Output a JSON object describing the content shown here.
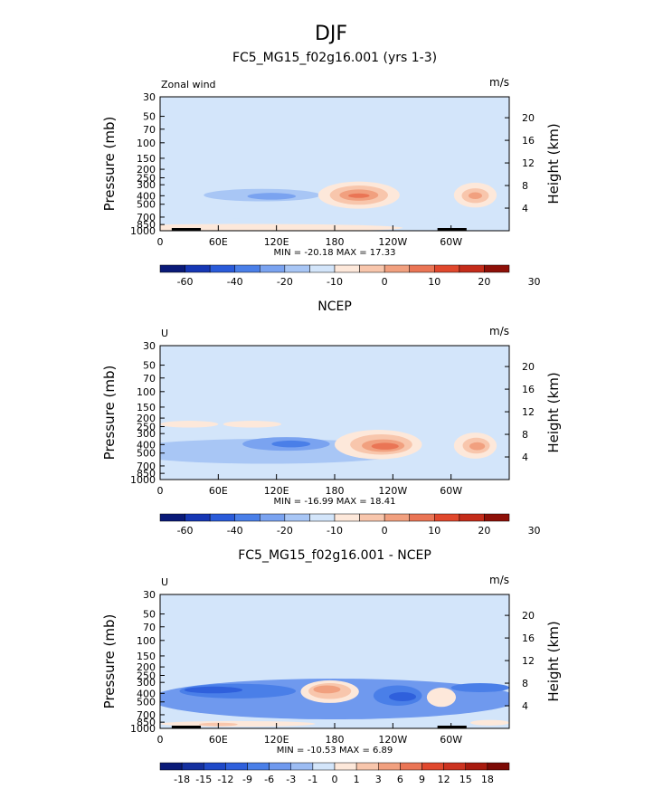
{
  "figure_title": "DJF",
  "chart_data": [
    {
      "type": "heatmap",
      "title": "FC5_MG15_f02g16.001 (yrs 1-3)",
      "left_label": "Zonal wind",
      "units": "m/s",
      "ylabel": "Pressure (mb)",
      "y2label": "Height (km)",
      "xticks": [
        "0",
        "60E",
        "120E",
        "180",
        "120W",
        "60W"
      ],
      "yticks": [
        "30",
        "50",
        "70",
        "100",
        "150",
        "200",
        "250",
        "300",
        "400",
        "500",
        "700",
        "850",
        "1000"
      ],
      "y2ticks": [
        "20",
        "16",
        "12",
        "8",
        "4"
      ],
      "stats": "MIN = -20.18   MAX =  17.33",
      "colorbar": {
        "labels": [
          "-60",
          "-40",
          "-20",
          "-10",
          "0",
          "10",
          "20",
          "30"
        ],
        "colors": [
          "#0a1a78",
          "#1637b4",
          "#2a5bd9",
          "#4a7fe8",
          "#7aa3f0",
          "#a8c6f5",
          "#d3e5fa",
          "#fde8da",
          "#f8c6ac",
          "#f1a07f",
          "#ea7555",
          "#e0482d",
          "#c42c1a",
          "#8e1008"
        ]
      },
      "fields": [
        {
          "level": 0,
          "x": 180,
          "y": 3.8,
          "rx": 190,
          "ry": 2.0
        },
        {
          "level": -1,
          "x": 105,
          "y": 6.3,
          "rx": 60,
          "ry": 1.1
        },
        {
          "level": -2,
          "x": 115,
          "y": 6.1,
          "rx": 25,
          "ry": 0.6
        },
        {
          "level": 1,
          "x": 205,
          "y": 6.3,
          "rx": 42,
          "ry": 2.4
        },
        {
          "level": 2,
          "x": 205,
          "y": 6.3,
          "rx": 30,
          "ry": 1.7
        },
        {
          "level": 3,
          "x": 205,
          "y": 6.3,
          "rx": 20,
          "ry": 1.0
        },
        {
          "level": 4,
          "x": 205,
          "y": 6.2,
          "rx": 11,
          "ry": 0.4
        },
        {
          "level": 1,
          "x": 325,
          "y": 6.3,
          "rx": 22,
          "ry": 2.2
        },
        {
          "level": 2,
          "x": 325,
          "y": 6.2,
          "rx": 14,
          "ry": 1.3
        },
        {
          "level": 3,
          "x": 325,
          "y": 6.2,
          "rx": 7,
          "ry": 0.6
        },
        {
          "level": 1,
          "x": 90,
          "y": 0.5,
          "rx": 160,
          "ry": 0.7
        }
      ]
    },
    {
      "type": "heatmap",
      "title": "NCEP",
      "left_label": "U",
      "units": "m/s",
      "ylabel": "Pressure (mb)",
      "y2label": "Height (km)",
      "xticks": [
        "0",
        "60E",
        "120E",
        "180",
        "120W",
        "60W"
      ],
      "yticks": [
        "30",
        "50",
        "70",
        "100",
        "150",
        "200",
        "250",
        "300",
        "400",
        "500",
        "700",
        "850",
        "1000"
      ],
      "y2ticks": [
        "20",
        "16",
        "12",
        "8",
        "4"
      ],
      "stats": "MIN = -16.99   MAX =  18.41",
      "colorbar": {
        "labels": [
          "-60",
          "-40",
          "-20",
          "-10",
          "0",
          "10",
          "20",
          "30"
        ],
        "colors": [
          "#0a1a78",
          "#1637b4",
          "#2a5bd9",
          "#4a7fe8",
          "#7aa3f0",
          "#a8c6f5",
          "#d3e5fa",
          "#fde8da",
          "#f8c6ac",
          "#f1a07f",
          "#ea7555",
          "#e0482d",
          "#c42c1a",
          "#8e1008"
        ]
      },
      "fields": [
        {
          "level": -1,
          "x": 110,
          "y": 5.0,
          "rx": 150,
          "ry": 2.2
        },
        {
          "level": -2,
          "x": 130,
          "y": 6.3,
          "rx": 45,
          "ry": 1.2
        },
        {
          "level": -3,
          "x": 135,
          "y": 6.3,
          "rx": 20,
          "ry": 0.6
        },
        {
          "level": 1,
          "x": 225,
          "y": 6.2,
          "rx": 45,
          "ry": 2.6
        },
        {
          "level": 2,
          "x": 228,
          "y": 6.2,
          "rx": 32,
          "ry": 1.8
        },
        {
          "level": 3,
          "x": 230,
          "y": 6.0,
          "rx": 22,
          "ry": 1.1
        },
        {
          "level": 4,
          "x": 232,
          "y": 5.9,
          "rx": 14,
          "ry": 0.6
        },
        {
          "level": 1,
          "x": 325,
          "y": 6.0,
          "rx": 22,
          "ry": 2.3
        },
        {
          "level": 2,
          "x": 326,
          "y": 6.0,
          "rx": 14,
          "ry": 1.4
        },
        {
          "level": 3,
          "x": 327,
          "y": 5.9,
          "rx": 8,
          "ry": 0.7
        },
        {
          "level": 1,
          "x": 30,
          "y": 9.8,
          "rx": 30,
          "ry": 0.6
        },
        {
          "level": 1,
          "x": 95,
          "y": 9.8,
          "rx": 30,
          "ry": 0.6
        }
      ]
    },
    {
      "type": "heatmap",
      "title": "FC5_MG15_f02g16.001 - NCEP",
      "left_label": "U",
      "units": "m/s",
      "ylabel": "Pressure (mb)",
      "y2label": "Height (km)",
      "xticks": [
        "0",
        "60E",
        "120E",
        "180",
        "120W",
        "60W"
      ],
      "yticks": [
        "30",
        "50",
        "70",
        "100",
        "150",
        "200",
        "250",
        "300",
        "400",
        "500",
        "700",
        "850",
        "1000"
      ],
      "y2ticks": [
        "20",
        "16",
        "12",
        "8",
        "4"
      ],
      "stats": "MIN = -10.53   MAX =   6.89",
      "colorbar": {
        "labels": [
          "-18",
          "-15",
          "-12",
          "-9",
          "-6",
          "-3",
          "-1",
          "0",
          "1",
          "3",
          "6",
          "9",
          "12",
          "15",
          "18"
        ],
        "colors": [
          "#0a1a78",
          "#14309f",
          "#1f49c8",
          "#2f60dc",
          "#4a7fe8",
          "#6f99ee",
          "#9cbcf3",
          "#d3e5fa",
          "#fde8da",
          "#f8c6ac",
          "#f1a07f",
          "#ea7555",
          "#e0482d",
          "#cc3320",
          "#a81a0e",
          "#7c0a05"
        ]
      },
      "fields": [
        {
          "level": -2,
          "x": 180,
          "y": 5.2,
          "rx": 190,
          "ry": 3.6
        },
        {
          "level": -3,
          "x": 80,
          "y": 6.6,
          "rx": 60,
          "ry": 1.3
        },
        {
          "level": -4,
          "x": 55,
          "y": 6.8,
          "rx": 30,
          "ry": 0.6
        },
        {
          "level": -3,
          "x": 245,
          "y": 5.8,
          "rx": 25,
          "ry": 1.8
        },
        {
          "level": -4,
          "x": 250,
          "y": 5.6,
          "rx": 14,
          "ry": 0.8
        },
        {
          "level": -3,
          "x": 330,
          "y": 7.2,
          "rx": 30,
          "ry": 0.8
        },
        {
          "level": 1,
          "x": 175,
          "y": 6.5,
          "rx": 30,
          "ry": 2.0
        },
        {
          "level": 2,
          "x": 175,
          "y": 6.6,
          "rx": 22,
          "ry": 1.4
        },
        {
          "level": 3,
          "x": 172,
          "y": 6.9,
          "rx": 14,
          "ry": 0.7
        },
        {
          "level": 1,
          "x": 290,
          "y": 5.5,
          "rx": 15,
          "ry": 1.7
        },
        {
          "level": 1,
          "x": 80,
          "y": 0.8,
          "rx": 80,
          "ry": 0.5
        },
        {
          "level": 2,
          "x": 60,
          "y": 0.7,
          "rx": 20,
          "ry": 0.3
        },
        {
          "level": 1,
          "x": 340,
          "y": 1.0,
          "rx": 20,
          "ry": 0.5
        }
      ]
    }
  ]
}
